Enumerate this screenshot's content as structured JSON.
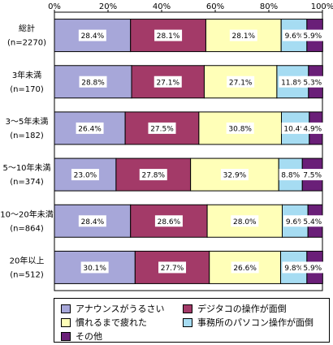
{
  "chart_data": {
    "type": "bar",
    "stacked": true,
    "orientation": "horizontal",
    "xlim": [
      0,
      100
    ],
    "x_ticks": [
      "0%",
      "20%",
      "40%",
      "60%",
      "80%",
      "100%"
    ],
    "categories": [
      {
        "name": "総計",
        "n": "(n=2270)"
      },
      {
        "name": "3年未満",
        "n": "(n=170)"
      },
      {
        "name": "3～5年未満",
        "n": "(n=182)"
      },
      {
        "name": "5～10年未満",
        "n": "(n=374)"
      },
      {
        "name": "10～20年未満",
        "n": "(n=864)"
      },
      {
        "name": "20年以上",
        "n": "(n=512)"
      }
    ],
    "series": [
      {
        "name": "アナウンスがうるさい",
        "color": "#a7a7d9",
        "values": [
          28.4,
          28.8,
          26.4,
          23.0,
          28.4,
          30.1
        ],
        "labels": [
          "28.4%",
          "28.8%",
          "26.4%",
          "23.0%",
          "28.4%",
          "30.1%"
        ]
      },
      {
        "name": "デジタコの操作が面倒",
        "color": "#a33a68",
        "values": [
          28.1,
          27.1,
          27.5,
          27.8,
          28.6,
          27.7
        ],
        "labels": [
          "28.1%",
          "27.1%",
          "27.5%",
          "27.8%",
          "28.6%",
          "27.7%"
        ]
      },
      {
        "name": "慣れるまで疲れた",
        "color": "#ffffb8",
        "values": [
          28.1,
          27.1,
          30.8,
          32.9,
          28.0,
          26.6
        ],
        "labels": [
          "28.1%",
          "27.1%",
          "30.8%",
          "32.9%",
          "28.0%",
          "26.6%"
        ]
      },
      {
        "name": "事務所のパソコン操作が面倒",
        "color": "#a6dcf2",
        "values": [
          9.6,
          11.8,
          10.4,
          8.8,
          9.6,
          9.8
        ],
        "labels": [
          "9.6%",
          "11.8%",
          "10.4%",
          "8.8%",
          "9.6%",
          "9.8%"
        ]
      },
      {
        "name": "その他",
        "color": "#6a1f78",
        "values": [
          5.9,
          5.3,
          4.9,
          7.5,
          5.4,
          5.9
        ],
        "labels": [
          "5.9%",
          "5.3%",
          "4.9%",
          "7.5%",
          "5.4%",
          "5.9%"
        ]
      }
    ],
    "legend_position": "bottom"
  }
}
